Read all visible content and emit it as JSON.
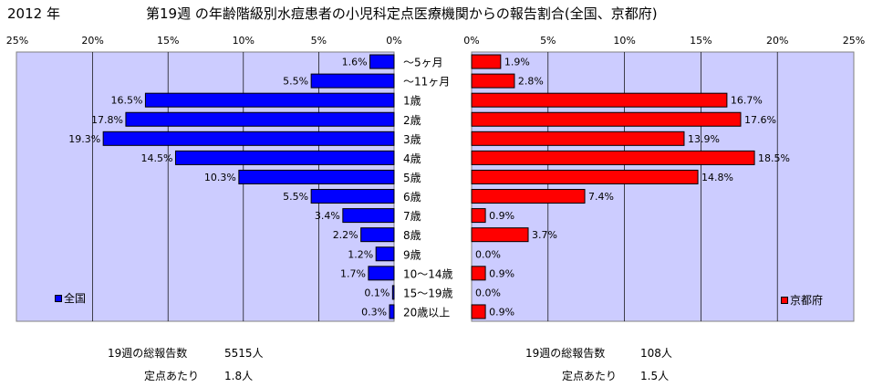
{
  "header": {
    "year": "2012 年",
    "title": "第19週 の年齢階級別水痘患者の小児科定点医療機関からの報告割合(全国、京都府)"
  },
  "chart_data": {
    "type": "bar",
    "orientation": "horizontal-butterfly",
    "categories": [
      "～5ヶ月",
      "～11ヶ月",
      "1歳",
      "2歳",
      "3歳",
      "4歳",
      "5歳",
      "6歳",
      "7歳",
      "8歳",
      "9歳",
      "10～14歳",
      "15～19歳",
      "20歳以上"
    ],
    "xlim": [
      0,
      25
    ],
    "x_ticks": [
      "0%",
      "5%",
      "10%",
      "15%",
      "20%",
      "25%"
    ],
    "series": [
      {
        "name": "全国",
        "side": "left",
        "color": "#0000FF",
        "values": [
          1.6,
          5.5,
          16.5,
          17.8,
          19.3,
          14.5,
          10.3,
          5.5,
          3.4,
          2.2,
          1.2,
          1.7,
          0.1,
          0.3
        ],
        "labels": [
          "1.6%",
          "5.5%",
          "16.5%",
          "17.8%",
          "19.3%",
          "14.5%",
          "10.3%",
          "5.5%",
          "3.4%",
          "2.2%",
          "1.2%",
          "1.7%",
          "0.1%",
          "0.3%"
        ]
      },
      {
        "name": "京都府",
        "side": "right",
        "color": "#FF0000",
        "values": [
          1.9,
          2.8,
          16.7,
          17.6,
          13.9,
          18.5,
          14.8,
          7.4,
          0.9,
          3.7,
          0.0,
          0.9,
          0.0,
          0.9
        ],
        "labels": [
          "1.9%",
          "2.8%",
          "16.7%",
          "17.6%",
          "13.9%",
          "18.5%",
          "14.8%",
          "7.4%",
          "0.9%",
          "3.7%",
          "0.0%",
          "0.9%",
          "0.0%",
          "0.9%"
        ]
      }
    ],
    "grid": true,
    "plot_background": "#CCCCFF"
  },
  "legend": {
    "left_label": "全国",
    "right_label": "京都府"
  },
  "summary": {
    "national": {
      "total_label": "19週の総報告数",
      "total_value": "5515人",
      "per_label": "定点あたり",
      "per_value": "1.8人"
    },
    "kyoto": {
      "total_label": "19週の総報告数",
      "total_value": "108人",
      "per_label": "定点あたり",
      "per_value": "1.5人"
    }
  }
}
